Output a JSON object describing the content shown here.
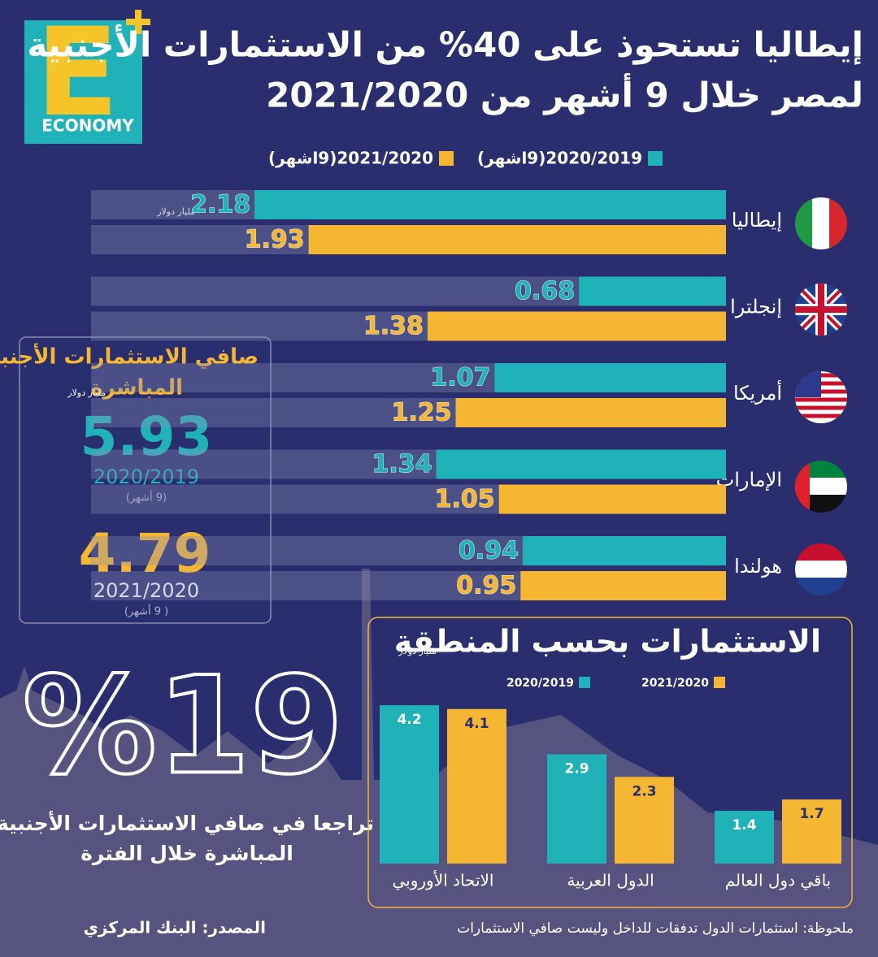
{
  "header": {
    "title_line1": "إيطاليا تستحوذ على 40% من الاستثمارات الأجنبية",
    "title_line2": "لمصر خلال 9 أشهر من 2021/2020"
  },
  "logo": {
    "letter": "E",
    "name": "ECONOMY"
  },
  "chart_data": [
    {
      "type": "bar",
      "orientation": "horizontal",
      "unit": "مليار دولار",
      "categories": [
        "إيطاليا",
        "إنجلترا",
        "أمريكا",
        "الإمارات",
        "هولندا"
      ],
      "series": [
        {
          "name": "2020/2019(9اشهر)",
          "color": "#1fb3b9",
          "values": [
            2.18,
            0.68,
            1.07,
            1.34,
            0.94
          ]
        },
        {
          "name": "2021/2020(9اشهر)",
          "color": "#f5b731",
          "values": [
            1.93,
            1.38,
            1.25,
            1.05,
            0.95
          ]
        }
      ]
    },
    {
      "type": "bar",
      "orientation": "vertical",
      "title": "الاستثمارات بحسب المنطقة",
      "unit": "مليار دولار",
      "categories": [
        "الاتحاد الأوروبي",
        "الدول العربية",
        "باقي دول العالم"
      ],
      "series": [
        {
          "name": "2020/2019",
          "color": "#1fb3b9",
          "values": [
            4.2,
            2.9,
            1.4
          ]
        },
        {
          "name": "2021/2020",
          "color": "#f5b731",
          "values": [
            4.1,
            2.3,
            1.7
          ]
        }
      ]
    }
  ],
  "summary": {
    "title_line1": "صافي الاستثمارات الأجنبية",
    "title_line2": "المباشرة",
    "unit": "مليار دولار",
    "items": [
      {
        "value": 5.93,
        "period": "2020/2019",
        "note": "(9 أشهر)"
      },
      {
        "value": 4.79,
        "period": "2021/2020",
        "note": "( 9 أشهر)"
      }
    ]
  },
  "decline": {
    "figure": "%19",
    "line1": "تراجعا في صافي الاستثمارات الأجنبية",
    "line2": "المباشرة خلال الفترة"
  },
  "footer": {
    "source": "المصدر: البنك المركزي",
    "note": "ملحوظة: استثمارات الدول تدفقات للداخل وليست صافي الاستثمارات"
  }
}
